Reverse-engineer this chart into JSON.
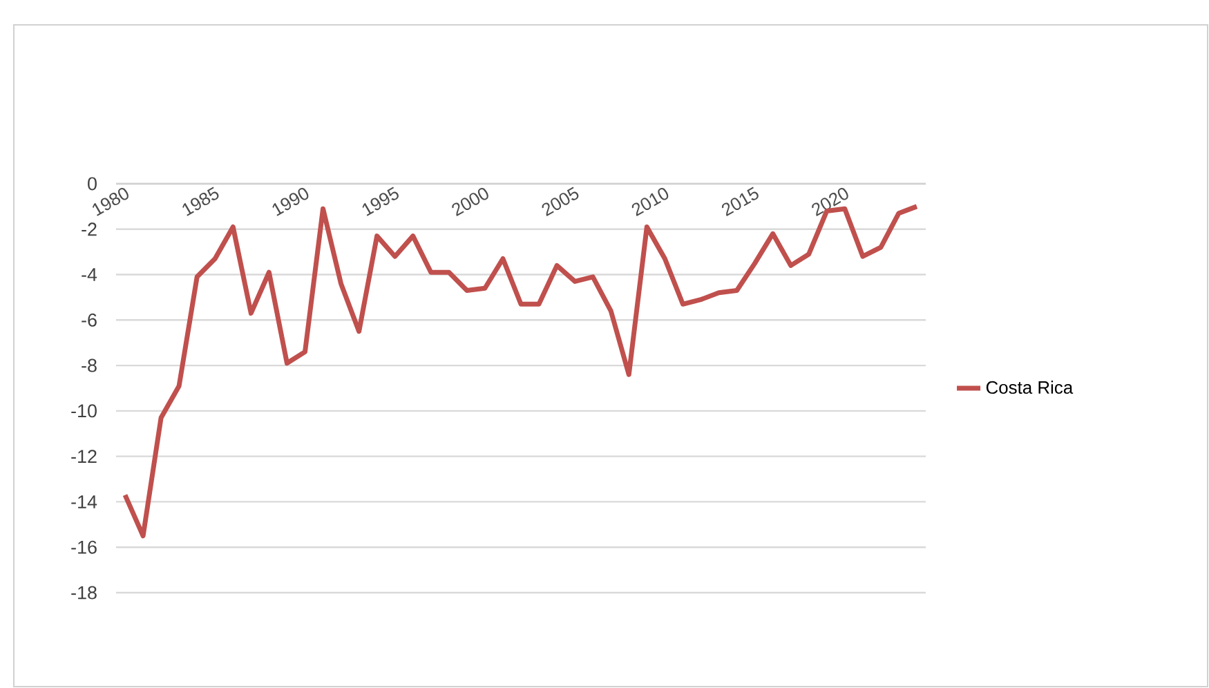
{
  "chart_data": {
    "type": "line",
    "categories": [
      "1980",
      null,
      null,
      null,
      null,
      "1985",
      null,
      null,
      null,
      null,
      "1990",
      null,
      null,
      null,
      null,
      "1995",
      null,
      null,
      null,
      null,
      "2000",
      null,
      null,
      null,
      null,
      "2005",
      null,
      null,
      null,
      null,
      "2010",
      null,
      null,
      null,
      null,
      "2015",
      null,
      null,
      null,
      null,
      "2020",
      null,
      null,
      null,
      null
    ],
    "series": [
      {
        "name": "Costa Rica",
        "color": "#c0504d",
        "values": [
          -13.7,
          -15.5,
          -10.3,
          -8.9,
          -4.1,
          -3.3,
          -1.9,
          -5.7,
          -3.9,
          -7.9,
          -7.4,
          -1.1,
          -4.4,
          -6.5,
          -2.3,
          -3.2,
          -2.3,
          -3.9,
          -3.9,
          -4.7,
          -4.6,
          -3.3,
          -5.3,
          -5.3,
          -3.6,
          -4.3,
          -4.1,
          -5.6,
          -8.4,
          -1.9,
          -3.3,
          -5.3,
          -5.1,
          -4.8,
          -4.7,
          -3.5,
          -2.2,
          -3.6,
          -3.1,
          -1.2,
          -1.1,
          -3.2,
          -2.8,
          -1.3,
          -1.0
        ]
      }
    ],
    "ylim": [
      -18,
      0
    ],
    "yticks": [
      -18,
      -16,
      -14,
      -12,
      -10,
      -8,
      -6,
      -4,
      -2,
      0
    ],
    "grid": "y",
    "legend": "right",
    "line_style": "solid"
  }
}
